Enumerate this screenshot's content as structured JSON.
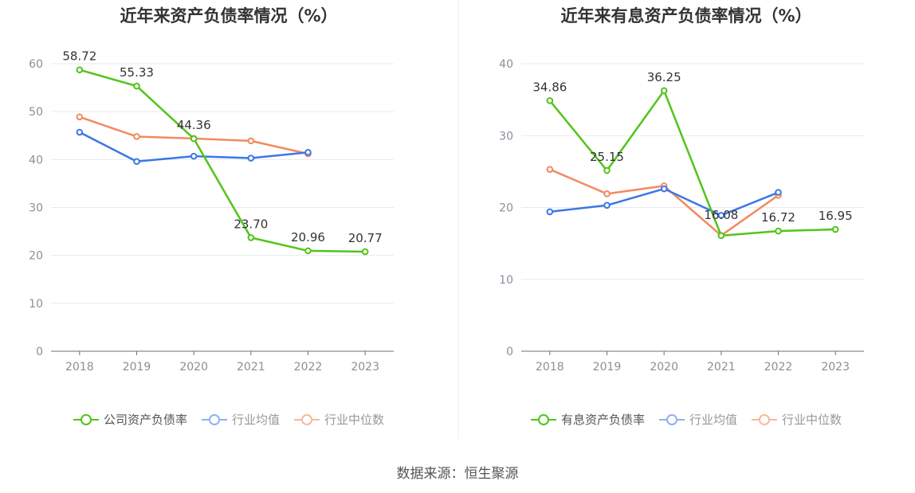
{
  "chart_data": [
    {
      "type": "line",
      "title": "近年来资产负债率情况（%）",
      "categories": [
        "2018",
        "2019",
        "2020",
        "2021",
        "2022",
        "2023"
      ],
      "ylim": [
        0,
        60
      ],
      "yticks": [
        0,
        10,
        20,
        30,
        40,
        50,
        60
      ],
      "grid": true,
      "legend_position": "bottom-center",
      "series": [
        {
          "name": "公司资产负债率",
          "color": "#52c41a",
          "values": [
            58.72,
            55.33,
            44.36,
            23.7,
            20.96,
            20.77
          ],
          "labels": [
            "58.72",
            "55.33",
            "44.36",
            "23.70",
            "20.96",
            "20.77"
          ],
          "legend_active": true
        },
        {
          "name": "行业均值",
          "color": "#3b78e7",
          "legend_color": "#8fb2f0",
          "values": [
            45.7,
            39.6,
            40.7,
            40.3,
            41.5,
            null
          ],
          "legend_active": false
        },
        {
          "name": "行业中位数",
          "color": "#f28a5f",
          "legend_color": "#f7b99e",
          "values": [
            48.9,
            44.8,
            44.4,
            43.9,
            41.2,
            null
          ],
          "legend_active": false
        }
      ]
    },
    {
      "type": "line",
      "title": "近年来有息资产负债率情况（%）",
      "categories": [
        "2018",
        "2019",
        "2020",
        "2021",
        "2022",
        "2023"
      ],
      "ylim": [
        0,
        40
      ],
      "yticks": [
        0,
        10,
        20,
        30,
        40
      ],
      "grid": true,
      "legend_position": "bottom-center",
      "series": [
        {
          "name": "有息资产负债率",
          "color": "#52c41a",
          "values": [
            34.86,
            25.15,
            36.25,
            16.08,
            16.72,
            16.95
          ],
          "labels": [
            "34.86",
            "25.15",
            "36.25",
            "16.08",
            "16.72",
            "16.95"
          ],
          "legend_active": true
        },
        {
          "name": "行业均值",
          "color": "#3b78e7",
          "legend_color": "#8fb2f0",
          "values": [
            19.4,
            20.3,
            22.6,
            18.9,
            22.1,
            null
          ],
          "legend_active": false
        },
        {
          "name": "行业中位数",
          "color": "#f28a5f",
          "legend_color": "#f7b99e",
          "values": [
            25.3,
            21.9,
            23.0,
            16.1,
            21.7,
            null
          ],
          "legend_active": false
        }
      ]
    }
  ],
  "footer": {
    "source_text": "数据来源：恒生聚源"
  }
}
